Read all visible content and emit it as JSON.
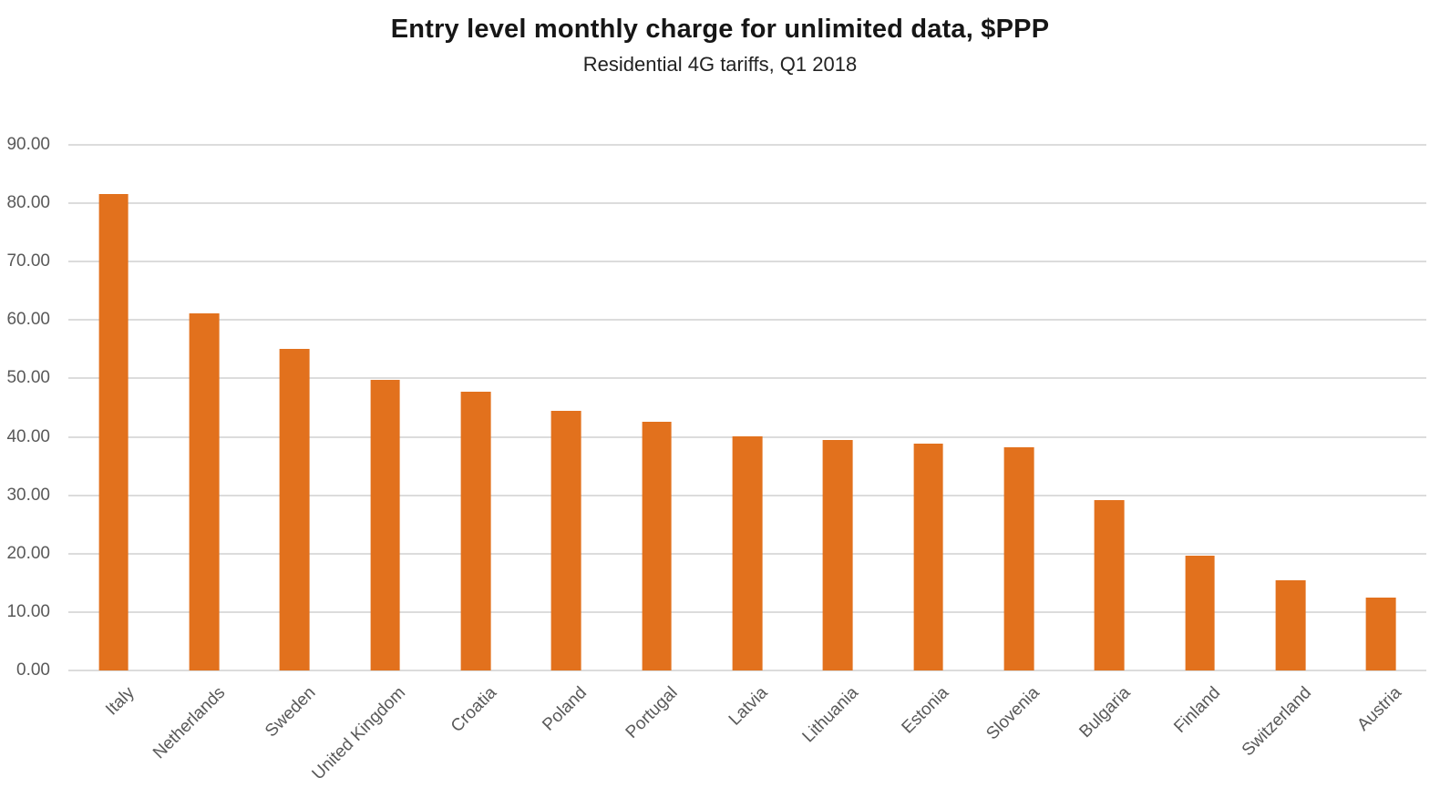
{
  "chart_data": {
    "type": "bar",
    "title": "Entry level monthly charge for unlimited data, $PPP",
    "subtitle": "Residential 4G tariffs, Q1 2018",
    "categories": [
      "Italy",
      "Netherlands",
      "Sweden",
      "United Kingdom",
      "Croatia",
      "Poland",
      "Portugal",
      "Latvia",
      "Lithuania",
      "Estonia",
      "Slovenia",
      "Bulgaria",
      "Finland",
      "Switzerland",
      "Austria"
    ],
    "values": [
      81.6,
      61.2,
      55.1,
      49.8,
      47.8,
      44.5,
      42.6,
      40.1,
      39.5,
      38.8,
      38.2,
      29.1,
      19.7,
      15.4,
      12.5
    ],
    "xlabel": "",
    "ylabel": "",
    "ylim": [
      0,
      90
    ],
    "ytick_step": 10,
    "ytick_format": "0.00",
    "grid": true,
    "legend": false,
    "bar_color": "#E2711D",
    "gridline_color": "#DCDCDC",
    "axis_label_color": "#595959"
  }
}
